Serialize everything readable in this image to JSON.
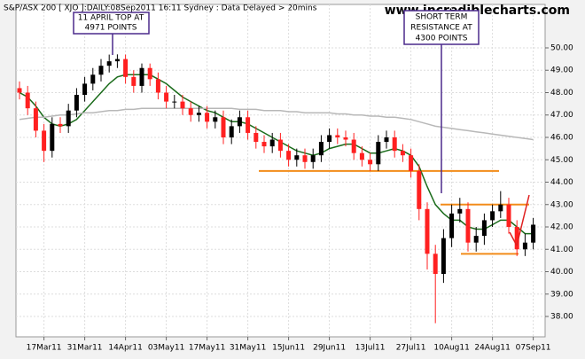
{
  "chart_data": {
    "type": "candlestick",
    "title": "S&P/ASX 200 [ XJO ]:DAILY:08Sep2011 16:11 Sydney : Data Delayed > 20mins",
    "watermark": "www.incrediblecharts.com",
    "annotations": [
      {
        "lines": [
          "11 APRIL TOP AT",
          "4971 POINTS"
        ]
      },
      {
        "lines": [
          "SHORT TERM",
          "RESISTANCE AT",
          "4300 POINTS"
        ]
      }
    ],
    "categories": [
      null,
      null,
      null,
      "17Mar11",
      null,
      null,
      null,
      null,
      "31Mar11",
      null,
      null,
      null,
      null,
      "14Apr11",
      null,
      null,
      null,
      null,
      "03May11",
      null,
      null,
      null,
      null,
      "17May11",
      null,
      null,
      null,
      null,
      "31May11",
      null,
      null,
      null,
      null,
      "15Jun11",
      null,
      null,
      null,
      null,
      "29Jun11",
      null,
      null,
      null,
      null,
      "13Jul11",
      null,
      null,
      null,
      null,
      "27Jul11",
      null,
      null,
      null,
      null,
      "10Aug11",
      null,
      null,
      null,
      null,
      "24Aug11",
      null,
      null,
      null,
      null,
      "07Sep11"
    ],
    "open": [
      48.2,
      48.0,
      47.3,
      46.3,
      45.4,
      46.6,
      46.5,
      47.2,
      47.9,
      48.4,
      48.8,
      49.2,
      49.4,
      49.5,
      48.7,
      48.3,
      49.1,
      48.6,
      48.0,
      47.6,
      47.6,
      47.3,
      47.0,
      47.1,
      46.7,
      46.9,
      46.0,
      46.5,
      46.9,
      46.2,
      45.8,
      45.6,
      45.9,
      45.4,
      45.0,
      45.2,
      44.9,
      45.2,
      45.8,
      46.1,
      46.0,
      45.9,
      45.3,
      45.0,
      44.8,
      45.8,
      46.0,
      45.4,
      45.2,
      44.5,
      42.8,
      40.8,
      39.9,
      41.5,
      42.6,
      42.8,
      41.3,
      41.6,
      42.3,
      42.7,
      43.0,
      42.0,
      41.0,
      41.3
    ],
    "high": [
      48.5,
      48.3,
      47.6,
      46.6,
      46.9,
      46.9,
      47.5,
      48.2,
      48.7,
      49.1,
      49.5,
      49.7,
      49.71,
      49.7,
      49.0,
      49.3,
      49.3,
      48.9,
      48.3,
      47.9,
      47.9,
      47.6,
      47.4,
      47.4,
      47.2,
      47.2,
      46.8,
      47.2,
      47.2,
      46.5,
      46.1,
      46.2,
      46.2,
      45.7,
      45.5,
      45.5,
      45.5,
      46.1,
      46.4,
      46.4,
      46.3,
      46.2,
      45.6,
      45.3,
      46.1,
      46.3,
      46.3,
      45.7,
      45.5,
      44.8,
      43.1,
      41.2,
      41.9,
      43.0,
      43.3,
      43.1,
      42.0,
      42.6,
      43.0,
      43.6,
      43.3,
      42.3,
      41.7,
      42.4
    ],
    "low": [
      47.7,
      47.0,
      46.0,
      44.9,
      45.1,
      46.2,
      46.2,
      46.9,
      47.6,
      48.1,
      48.5,
      48.9,
      49.1,
      48.4,
      48.0,
      48.0,
      48.3,
      47.7,
      47.3,
      47.3,
      47.0,
      46.7,
      46.7,
      46.4,
      46.4,
      45.7,
      45.7,
      46.2,
      45.9,
      45.5,
      45.3,
      45.3,
      45.1,
      44.7,
      44.7,
      44.6,
      44.6,
      44.9,
      45.5,
      45.7,
      45.6,
      45.0,
      44.7,
      44.5,
      44.5,
      45.5,
      45.1,
      44.9,
      44.2,
      42.3,
      40.1,
      37.7,
      39.5,
      41.1,
      42.2,
      40.9,
      40.9,
      41.2,
      42.0,
      42.4,
      41.7,
      40.7,
      40.7,
      41.0
    ],
    "close": [
      48.0,
      47.3,
      46.3,
      45.4,
      46.6,
      46.5,
      47.2,
      47.9,
      48.4,
      48.8,
      49.2,
      49.4,
      49.5,
      48.7,
      48.3,
      49.1,
      48.6,
      48.0,
      47.6,
      47.6,
      47.3,
      47.0,
      47.1,
      46.7,
      46.9,
      46.0,
      46.5,
      46.9,
      46.2,
      45.8,
      45.6,
      45.9,
      45.4,
      45.0,
      45.2,
      44.9,
      45.2,
      45.8,
      46.1,
      46.0,
      45.9,
      45.3,
      45.0,
      44.8,
      45.8,
      46.0,
      45.4,
      45.2,
      44.5,
      42.8,
      40.8,
      39.9,
      41.5,
      42.6,
      42.8,
      41.3,
      41.6,
      42.3,
      42.7,
      43.0,
      42.0,
      41.0,
      41.3,
      42.1
    ],
    "up_color": "#000000",
    "down_color": "#ff2020",
    "series": [
      {
        "color": "#1a6b1a",
        "values": [
          48.0,
          47.8,
          47.4,
          46.9,
          46.6,
          46.5,
          46.6,
          46.8,
          47.2,
          47.6,
          48.0,
          48.4,
          48.7,
          48.8,
          48.8,
          48.8,
          48.8,
          48.6,
          48.4,
          48.1,
          47.8,
          47.6,
          47.4,
          47.2,
          47.1,
          46.9,
          46.7,
          46.7,
          46.6,
          46.4,
          46.2,
          46.0,
          45.8,
          45.6,
          45.4,
          45.3,
          45.2,
          45.3,
          45.5,
          45.6,
          45.7,
          45.7,
          45.5,
          45.3,
          45.3,
          45.4,
          45.5,
          45.4,
          45.2,
          44.7,
          43.8,
          43.0,
          42.6,
          42.3,
          42.3,
          42.0,
          41.9,
          41.9,
          42.1,
          42.3,
          42.3,
          42.0,
          41.7,
          41.7
        ]
      },
      {
        "color": "#b8b8b8",
        "values": [
          46.8,
          46.85,
          46.9,
          46.9,
          46.95,
          47.0,
          47.0,
          47.05,
          47.1,
          47.1,
          47.15,
          47.2,
          47.2,
          47.25,
          47.25,
          47.3,
          47.3,
          47.3,
          47.3,
          47.3,
          47.3,
          47.3,
          47.3,
          47.3,
          47.3,
          47.3,
          47.3,
          47.25,
          47.25,
          47.25,
          47.2,
          47.2,
          47.2,
          47.15,
          47.15,
          47.1,
          47.1,
          47.1,
          47.1,
          47.05,
          47.05,
          47.0,
          47.0,
          46.95,
          46.95,
          46.9,
          46.9,
          46.85,
          46.8,
          46.7,
          46.6,
          46.5,
          46.45,
          46.4,
          46.35,
          46.3,
          46.25,
          46.2,
          46.15,
          46.1,
          46.05,
          46.0,
          45.95,
          45.9
        ]
      }
    ],
    "levels": [
      44.5,
      43.0,
      40.8
    ],
    "level_color": "#f28c1a",
    "ylim": [
      37.09,
      51.94
    ],
    "yticks": [
      {
        "value": 38,
        "label": "38.00"
      },
      {
        "value": 39,
        "label": "39.00"
      },
      {
        "value": 40,
        "label": "40.00"
      },
      {
        "value": 41,
        "label": "41.00"
      },
      {
        "value": 42,
        "label": "42.00"
      },
      {
        "value": 43,
        "label": "43.00"
      },
      {
        "value": 44,
        "label": "44.00"
      },
      {
        "value": 45,
        "label": "45.00"
      },
      {
        "value": 46,
        "label": "46.00"
      },
      {
        "value": 47,
        "label": "47.00"
      },
      {
        "value": 48,
        "label": "48.00"
      },
      {
        "value": 49,
        "label": "49.00"
      },
      {
        "value": 50,
        "label": "50.00"
      }
    ],
    "grid": true
  }
}
